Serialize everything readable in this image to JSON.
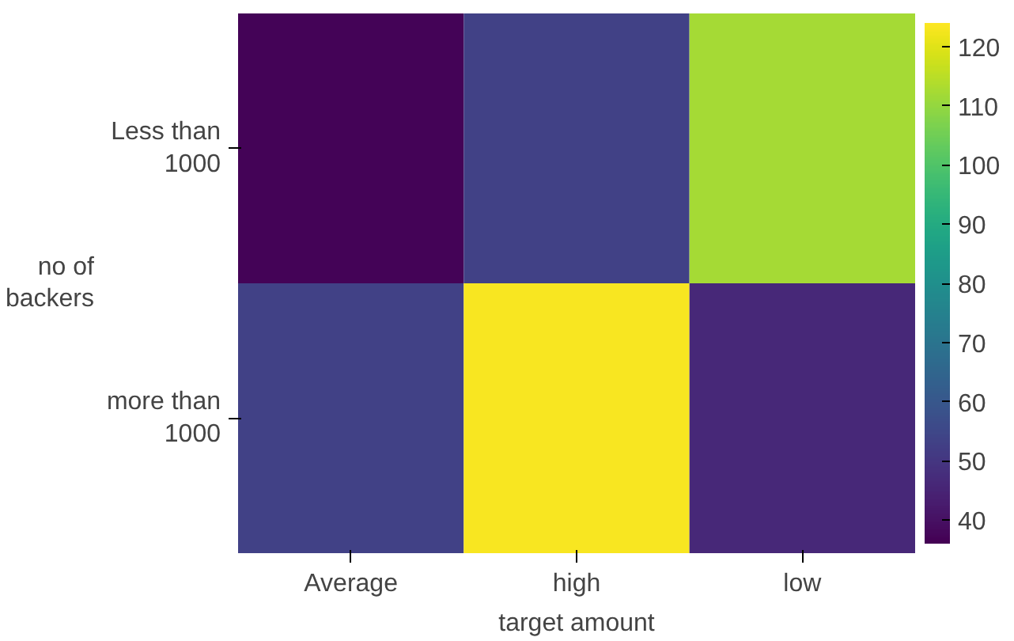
{
  "chart_data": {
    "type": "heatmap",
    "xlabel": "target amount",
    "ylabel": "no of backers",
    "categories": [
      "Average",
      "high",
      "low"
    ],
    "y_categories": [
      "Less than 1000",
      "more than 1000"
    ],
    "cells": [
      [
        37,
        53,
        112
      ],
      [
        53,
        123,
        46
      ]
    ],
    "clim": [
      36,
      124
    ],
    "cticks": [
      40,
      50,
      60,
      70,
      80,
      90,
      100,
      110,
      120
    ]
  }
}
